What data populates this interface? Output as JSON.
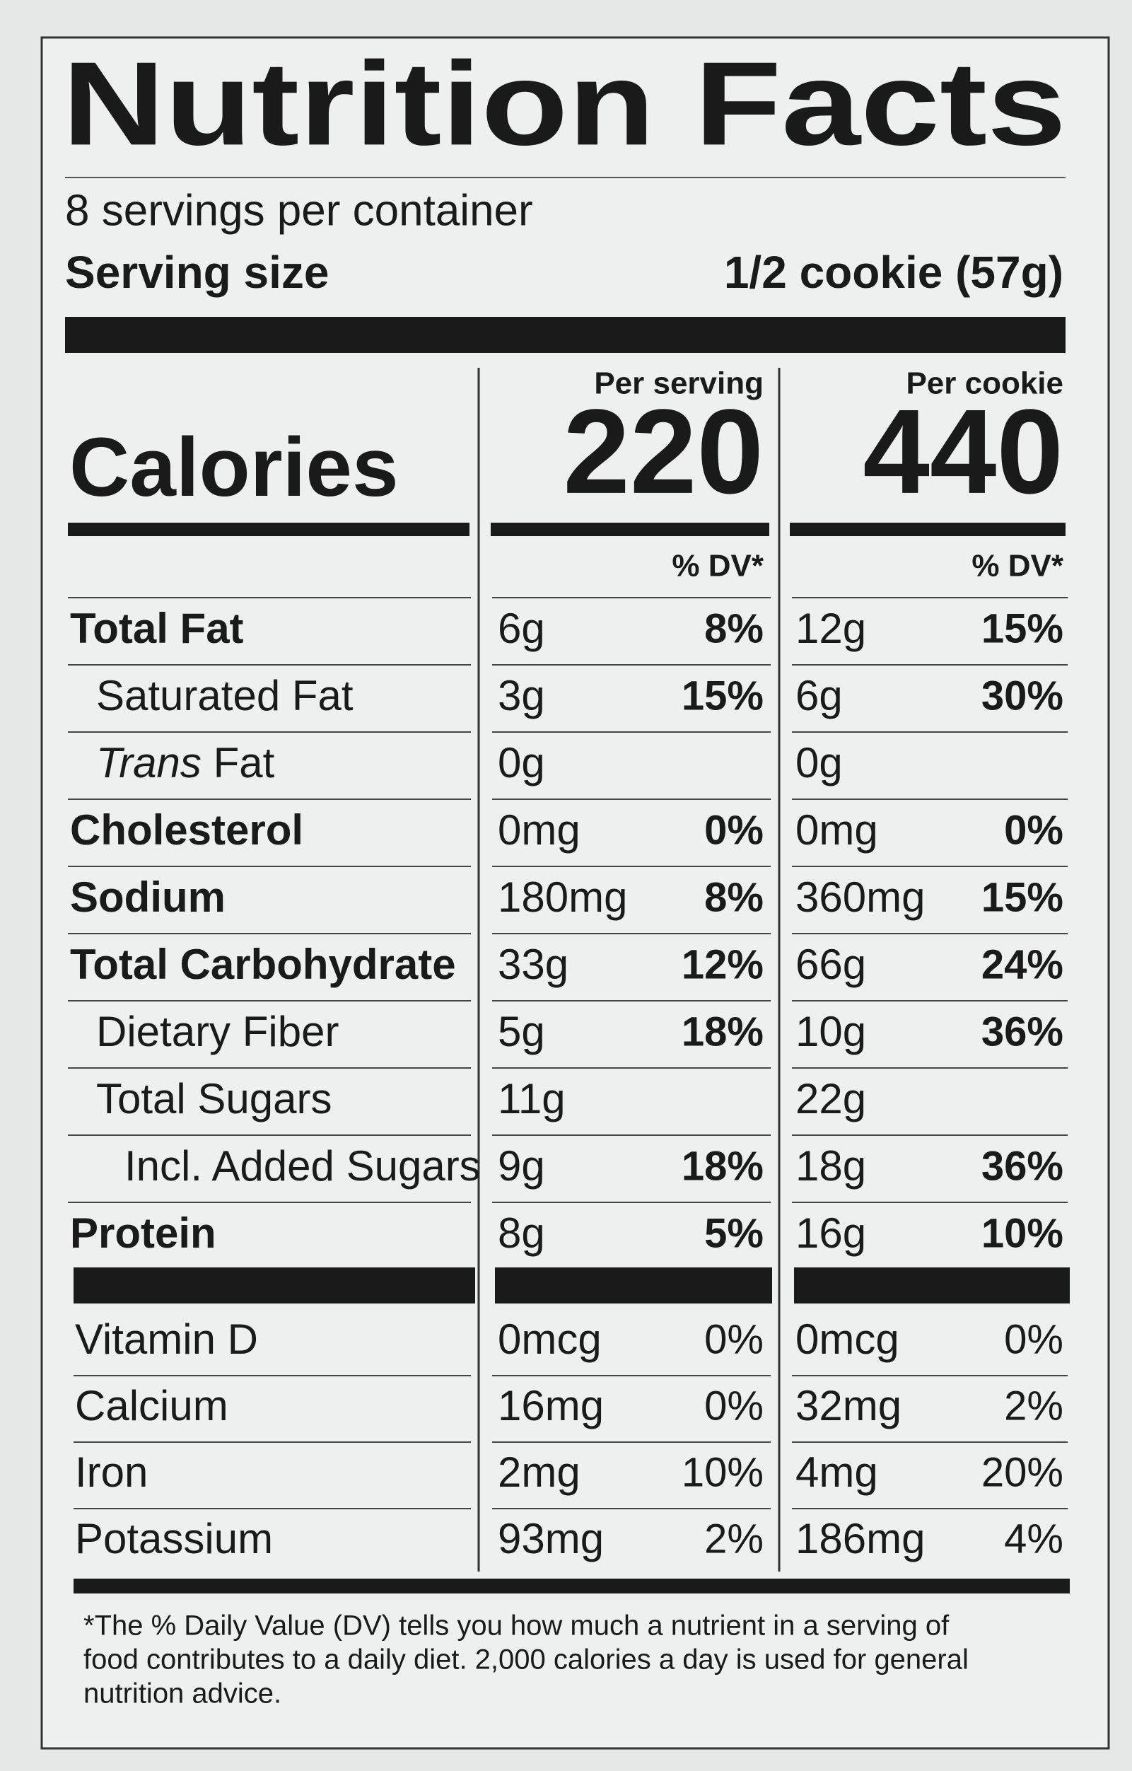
{
  "title": "Nutrition Facts",
  "servings": "8 servings per container",
  "serving_size": {
    "label": "Serving size",
    "value": "1/2 cookie (57g)"
  },
  "columns": [
    {
      "header": "Per serving",
      "calories": "220",
      "dv_header": "% DV*"
    },
    {
      "header": "Per cookie",
      "calories": "440",
      "dv_header": "% DV*"
    }
  ],
  "calories_label": "Calories",
  "nutrients": [
    {
      "name": "Total Fat",
      "level": 0,
      "bold": true,
      "values": [
        [
          "6g",
          "8%"
        ],
        [
          "12g",
          "15%"
        ]
      ]
    },
    {
      "name": "Saturated Fat",
      "level": 1,
      "bold": false,
      "values": [
        [
          "3g",
          "15%"
        ],
        [
          "6g",
          "30%"
        ]
      ]
    },
    {
      "name_italic": "Trans",
      "name": "Fat",
      "level": 1,
      "bold": false,
      "values": [
        [
          "0g"
        ],
        [
          "0g"
        ]
      ]
    },
    {
      "name": "Cholesterol",
      "level": 0,
      "bold": true,
      "values": [
        [
          "0mg",
          "0%"
        ],
        [
          "0mg",
          "0%"
        ]
      ]
    },
    {
      "name": "Sodium",
      "level": 0,
      "bold": true,
      "values": [
        [
          "180mg",
          "8%"
        ],
        [
          "360mg",
          "15%"
        ]
      ]
    },
    {
      "name": "Total Carbohydrate",
      "level": 0,
      "bold": true,
      "values": [
        [
          "33g",
          "12%"
        ],
        [
          "66g",
          "24%"
        ]
      ]
    },
    {
      "name": "Dietary Fiber",
      "level": 1,
      "bold": false,
      "values": [
        [
          "5g",
          "18%"
        ],
        [
          "10g",
          "36%"
        ]
      ]
    },
    {
      "name": "Total Sugars",
      "level": 1,
      "bold": false,
      "values": [
        [
          "11g"
        ],
        [
          "22g"
        ]
      ]
    },
    {
      "name": "Incl. Added Sugars",
      "level": 2,
      "bold": false,
      "values": [
        [
          "9g",
          "18%"
        ],
        [
          "18g",
          "36%"
        ]
      ]
    },
    {
      "name": "Protein",
      "level": 0,
      "bold": true,
      "values": [
        [
          "8g",
          "5%"
        ],
        [
          "16g",
          "10%"
        ]
      ]
    }
  ],
  "minerals": [
    {
      "name": "Vitamin D",
      "values": [
        [
          "0mcg",
          "0%"
        ],
        [
          "0mcg",
          "0%"
        ]
      ]
    },
    {
      "name": "Calcium",
      "values": [
        [
          "16mg",
          "0%"
        ],
        [
          "32mg",
          "2%"
        ]
      ]
    },
    {
      "name": "Iron",
      "values": [
        [
          "2mg",
          "10%"
        ],
        [
          "4mg",
          "20%"
        ]
      ]
    },
    {
      "name": "Potassium",
      "values": [
        [
          "93mg",
          "2%"
        ],
        [
          "186mg",
          "4%"
        ]
      ]
    }
  ],
  "footnote": [
    "*The % Daily Value (DV) tells you how much a nutrient in a serving of",
    "food contributes to a daily diet. 2,000 calories a day is used for general",
    "nutrition advice."
  ]
}
